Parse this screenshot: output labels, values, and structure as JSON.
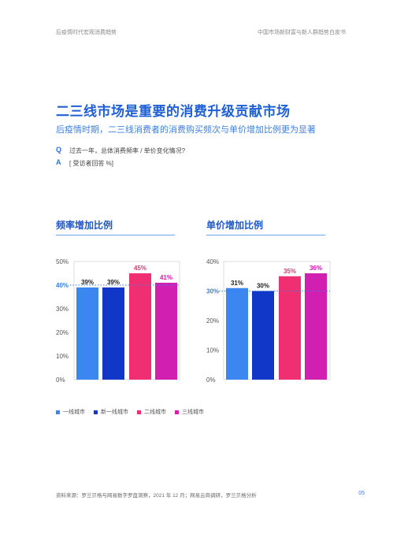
{
  "header": {
    "left": "后疫情时代宏观消费趋势",
    "right": "中国市场新财富与新人群趋势白皮书"
  },
  "title": "二三线市场是重要的消费升级贡献市场",
  "subtitle": "后疫情时期，二三线消费者的消费购买频次与单价增加比例更为显著",
  "qa": {
    "q_letter": "Q",
    "q_text": "过去一年，总体消费频率 / 单价变化情况?",
    "a_letter": "A",
    "a_text": "[ 受访者回答 %]"
  },
  "colors": {
    "accent": "#1f5fd6",
    "series": [
      "#3b86f0",
      "#1037c8",
      "#ef2f72",
      "#d11fb1"
    ],
    "value_label": [
      "#222222",
      "#222222",
      "#ef2f72",
      "#d11fb1"
    ],
    "reference_line": "#3b7fe6"
  },
  "chart_data": [
    {
      "type": "bar",
      "title": "频率增加比例",
      "categories": [
        "一线城市",
        "新一线城市",
        "二线城市",
        "三线城市"
      ],
      "values": [
        39,
        39,
        45,
        41
      ],
      "value_labels": [
        "39%",
        "39%",
        "45%",
        "41%"
      ],
      "ylim": [
        0,
        50
      ],
      "yticks": [
        0,
        10,
        20,
        30,
        40,
        50
      ],
      "ytick_labels": [
        "0%",
        "10%",
        "20%",
        "30%",
        "40%",
        "50%"
      ],
      "reference_value": 40,
      "xlabel": "",
      "ylabel": ""
    },
    {
      "type": "bar",
      "title": "单价增加比例",
      "categories": [
        "一线城市",
        "新一线城市",
        "二线城市",
        "三线城市"
      ],
      "values": [
        31,
        30,
        35,
        36
      ],
      "value_labels": [
        "31%",
        "30%",
        "35%",
        "36%"
      ],
      "ylim": [
        0,
        40
      ],
      "yticks": [
        0,
        10,
        20,
        30,
        40
      ],
      "ytick_labels": [
        "0%",
        "10%",
        "20%",
        "30%",
        "40%"
      ],
      "reference_value": 30,
      "xlabel": "",
      "ylabel": ""
    }
  ],
  "legend": [
    "一线城市",
    "新一线城市",
    "二线城市",
    "三线城市"
  ],
  "footer": "资料来源：罗兰贝格与网易数字罗盘洞察，2021 年 12 月；网易云商调研，罗兰贝格分析",
  "page_number": "05"
}
